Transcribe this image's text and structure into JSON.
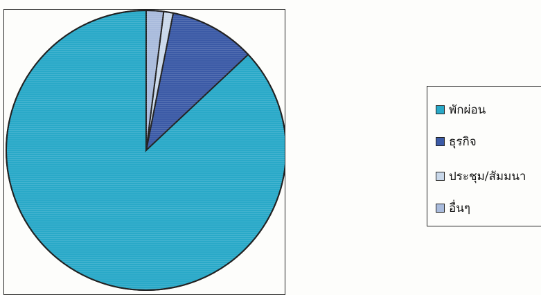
{
  "chart_data": {
    "type": "pie",
    "title": "",
    "legend_position": "right",
    "slices": [
      {
        "label": "พักผ่อน",
        "value": 87.0,
        "color": "#29a9c8"
      },
      {
        "label": "ธุรกิจ",
        "value": 9.9,
        "color": "#3b5aa6"
      },
      {
        "label": "ประชุม/สัมมนา",
        "value": 1.1,
        "color": "#c9d8ea"
      },
      {
        "label": "อื่นๆ",
        "value": 2.0,
        "color": "#a9bbdc"
      }
    ],
    "start": "12 o'clock",
    "direction": "counter-clockwise"
  }
}
